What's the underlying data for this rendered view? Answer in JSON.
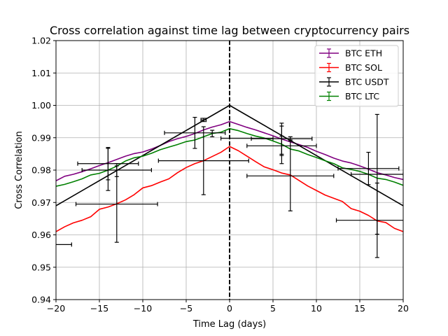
{
  "chart_data": {
    "type": "line",
    "title": "Cross correlation against time lag between cryptocurrency pairs",
    "xlabel": "Time Lag (days)",
    "ylabel": "Cross Correlation",
    "xlim": [
      -20,
      20
    ],
    "ylim": [
      0.94,
      1.02
    ],
    "xticks": [
      -20,
      -15,
      -10,
      -5,
      0,
      5,
      10,
      15,
      20
    ],
    "xtick_labels": [
      "−20",
      "−15",
      "−10",
      "−5",
      "0",
      "5",
      "10",
      "15",
      "20"
    ],
    "yticks": [
      0.94,
      0.95,
      0.96,
      0.97,
      0.98,
      0.99,
      1.0,
      1.01,
      1.02
    ],
    "ytick_labels": [
      "0.94",
      "0.95",
      "0.96",
      "0.97",
      "0.98",
      "0.99",
      "1.00",
      "1.01",
      "1.02"
    ],
    "grid": true,
    "legend_position": "top-right",
    "zero_line": {
      "x": 0,
      "style": "dashed"
    },
    "series": [
      {
        "name": "BTC ETH",
        "color": "#800080",
        "x": [
          -20,
          -19,
          -18,
          -17,
          -16,
          -15,
          -14,
          -13,
          -12,
          -11,
          -10,
          -9,
          -8,
          -7,
          -6,
          -5,
          -4,
          -3,
          -2,
          -1,
          0,
          1,
          2,
          3,
          4,
          5,
          6,
          7,
          8,
          9,
          10,
          11,
          12,
          13,
          14,
          15,
          16,
          17,
          18,
          19,
          20
        ],
        "y": [
          0.9767,
          0.9781,
          0.9787,
          0.9795,
          0.9804,
          0.9814,
          0.9823,
          0.9833,
          0.9843,
          0.9851,
          0.9856,
          0.9865,
          0.9876,
          0.9888,
          0.9897,
          0.9904,
          0.9913,
          0.9924,
          0.9933,
          0.994,
          0.995,
          0.9941,
          0.9932,
          0.9924,
          0.9915,
          0.9906,
          0.9896,
          0.9887,
          0.9879,
          0.987,
          0.9858,
          0.9848,
          0.9837,
          0.9828,
          0.9822,
          0.9813,
          0.9803,
          0.9792,
          0.9785,
          0.9777,
          0.9771
        ],
        "errorbars": [
          {
            "x": -3,
            "y": 0.9955,
            "xerr": 0.3,
            "yerr": 0.0005
          },
          {
            "x": 2,
            "y": 0.9898,
            "xerr": 3,
            "yerr": 0
          },
          {
            "x": 6,
            "y": 0.9897,
            "xerr": 3.5,
            "yerr": 0.0048
          },
          {
            "x": 7,
            "y": 0.9898,
            "xerr": 0,
            "yerr": 0.0005
          },
          {
            "x": 16,
            "y": 0.9805,
            "xerr": 3.5,
            "yerr": 0.005
          }
        ]
      },
      {
        "name": "BTC SOL",
        "color": "#ff0000",
        "x": [
          -20,
          -19,
          -18,
          -17,
          -16,
          -15,
          -14,
          -13,
          -12,
          -11,
          -10,
          -9,
          -8,
          -7,
          -6,
          -5,
          -4,
          -3,
          -2,
          -1,
          0,
          1,
          2,
          3,
          4,
          5,
          6,
          7,
          8,
          9,
          10,
          11,
          12,
          13,
          14,
          15,
          16,
          17,
          18,
          19,
          20
        ],
        "y": [
          0.961,
          0.9625,
          0.9637,
          0.9645,
          0.9656,
          0.9679,
          0.9686,
          0.9696,
          0.9708,
          0.9724,
          0.9745,
          0.9752,
          0.9763,
          0.9773,
          0.9792,
          0.9808,
          0.982,
          0.9829,
          0.9842,
          0.9855,
          0.9873,
          0.986,
          0.9843,
          0.9826,
          0.981,
          0.9801,
          0.9791,
          0.9785,
          0.9768,
          0.9751,
          0.9737,
          0.9723,
          0.9713,
          0.9703,
          0.9681,
          0.9673,
          0.966,
          0.9643,
          0.9638,
          0.962,
          0.961
        ],
        "errorbars": [
          {
            "x": -13,
            "y": 0.9695,
            "xerr": 4.7,
            "yerr": 0.0118
          },
          {
            "x": -3,
            "y": 0.9829,
            "xerr": 5.2,
            "yerr": 0.0105
          },
          {
            "x": 7,
            "y": 0.9782,
            "xerr": 5,
            "yerr": 0.0108
          },
          {
            "x": 17,
            "y": 0.9645,
            "xerr": 4.7,
            "yerr": 0.0115
          }
        ]
      },
      {
        "name": "BTC USDT",
        "color": "#000000",
        "x": [
          -20,
          0,
          20
        ],
        "y": [
          0.969,
          1.0,
          0.969
        ],
        "errorbars": [
          {
            "x": -20,
            "y": 0.957,
            "xerr": 1.8,
            "yerr": 0
          },
          {
            "x": -14,
            "y": 0.9802,
            "xerr": 0,
            "yerr": 0.0065
          },
          {
            "x": -4,
            "y": 0.9915,
            "xerr": 3.5,
            "yerr": 0.0048
          },
          {
            "x": 6,
            "y": 0.9878,
            "xerr": 0,
            "yerr": 0.0058
          }
        ]
      },
      {
        "name": "BTC LTC",
        "color": "#008000",
        "x": [
          -20,
          -19,
          -18,
          -17,
          -16,
          -15,
          -14,
          -13,
          -12,
          -11,
          -10,
          -9,
          -8,
          -7,
          -6,
          -5,
          -4,
          -3,
          -2,
          -1,
          0,
          1,
          2,
          3,
          4,
          5,
          6,
          7,
          8,
          9,
          10,
          11,
          12,
          13,
          14,
          15,
          16,
          17,
          18,
          19,
          20
        ],
        "y": [
          0.975,
          0.9756,
          0.9764,
          0.9773,
          0.9785,
          0.979,
          0.98,
          0.9812,
          0.9828,
          0.9838,
          0.9843,
          0.9852,
          0.9863,
          0.9871,
          0.9879,
          0.9888,
          0.9893,
          0.9903,
          0.9913,
          0.9917,
          0.9928,
          0.9922,
          0.9913,
          0.9905,
          0.9899,
          0.989,
          0.988,
          0.9865,
          0.9859,
          0.9848,
          0.9839,
          0.9829,
          0.982,
          0.9807,
          0.9802,
          0.9796,
          0.9787,
          0.9775,
          0.9771,
          0.9763,
          0.9753
        ],
        "errorbars": [
          {
            "x": -14,
            "y": 0.982,
            "xerr": 3.5,
            "yerr": 0.005
          },
          {
            "x": -13,
            "y": 0.98,
            "xerr": 4,
            "yerr": 0.002
          },
          {
            "x": -2,
            "y": 0.9913,
            "xerr": 0,
            "yerr": 0.001
          },
          {
            "x": 6,
            "y": 0.9875,
            "xerr": 4,
            "yerr": 0.003
          },
          {
            "x": 17,
            "y": 0.9787,
            "xerr": 3,
            "yerr": 0.0185
          }
        ]
      }
    ]
  }
}
